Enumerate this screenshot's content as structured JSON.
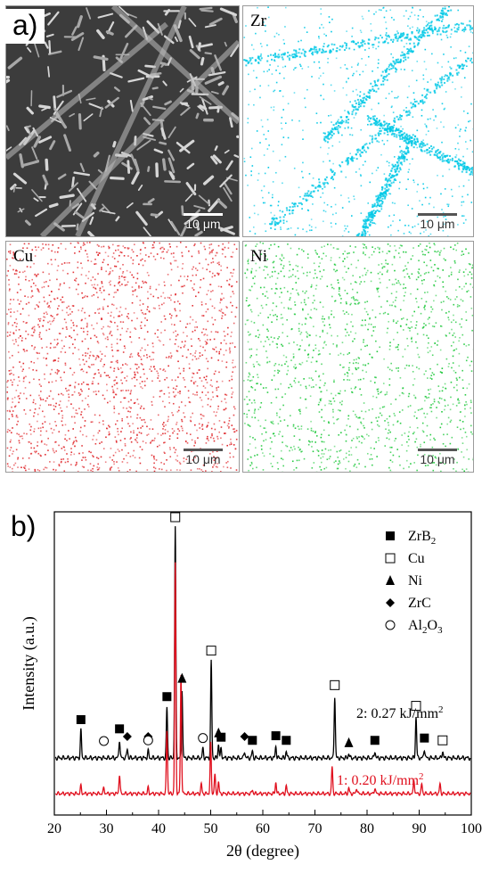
{
  "figure_a": {
    "label": "a)",
    "panels": [
      {
        "id": "sem",
        "element": "",
        "scale": "10 μm",
        "color": "#5a5a5a"
      },
      {
        "id": "zr",
        "element": "Zr",
        "scale": "10 μm",
        "color": "#00c8e6"
      },
      {
        "id": "cu",
        "element": "Cu",
        "scale": "10 μm",
        "color": "#e0282c"
      },
      {
        "id": "ni",
        "element": "Ni",
        "scale": "10 μm",
        "color": "#1fc83c"
      }
    ]
  },
  "figure_b": {
    "label": "b)",
    "chart_data": {
      "type": "line",
      "xlabel": "2θ (degree)",
      "ylabel": "Intensity (a.u.)",
      "xlim": [
        20,
        100
      ],
      "xticks": [
        20,
        30,
        40,
        50,
        60,
        70,
        80,
        90,
        100
      ],
      "xtick_labels": [
        "20",
        "30",
        "40",
        "50",
        "60",
        "70",
        "80",
        "90",
        "100"
      ],
      "series": [
        {
          "name": "2: 0.27 kJ/mm²",
          "color": "#000000",
          "peaks": [
            [
              25.1,
              0.12
            ],
            [
              32.5,
              0.08
            ],
            [
              34.0,
              0.04
            ],
            [
              38.0,
              0.03
            ],
            [
              41.6,
              0.22
            ],
            [
              43.2,
              1.0
            ],
            [
              44.5,
              0.3
            ],
            [
              48.5,
              0.04
            ],
            [
              50.1,
              0.42
            ],
            [
              51.5,
              0.06
            ],
            [
              52.0,
              0.04
            ],
            [
              56.5,
              0.03
            ],
            [
              58.0,
              0.03
            ],
            [
              62.5,
              0.05
            ],
            [
              64.5,
              0.03
            ],
            [
              73.8,
              0.27
            ],
            [
              76.5,
              0.02
            ],
            [
              81.5,
              0.03
            ],
            [
              89.4,
              0.18
            ],
            [
              91.0,
              0.04
            ],
            [
              94.5,
              0.03
            ]
          ]
        },
        {
          "name": "1: 0.20 kJ/mm²",
          "color": "#e0101e",
          "peaks": [
            [
              25.1,
              0.04
            ],
            [
              29.5,
              0.03
            ],
            [
              32.5,
              0.1
            ],
            [
              38.0,
              0.03
            ],
            [
              41.6,
              0.33
            ],
            [
              43.2,
              1.2
            ],
            [
              44.3,
              0.62
            ],
            [
              48.2,
              0.05
            ],
            [
              50.0,
              0.26
            ],
            [
              50.8,
              0.1
            ],
            [
              51.5,
              0.06
            ],
            [
              58.0,
              0.02
            ],
            [
              62.5,
              0.06
            ],
            [
              64.5,
              0.04
            ],
            [
              73.3,
              0.14
            ],
            [
              76.5,
              0.03
            ],
            [
              78.0,
              0.03
            ],
            [
              81.5,
              0.03
            ],
            [
              89.0,
              0.07
            ],
            [
              90.5,
              0.05
            ],
            [
              94.0,
              0.05
            ]
          ]
        }
      ],
      "series_labels": [
        {
          "text": "2: 0.27 kJ/mm",
          "sup": "2",
          "color": "#000000"
        },
        {
          "text": "1: 0.20 kJ/mm",
          "sup": "2",
          "color": "#e0101e"
        }
      ],
      "legend": {
        "placement": "top-right",
        "items": [
          {
            "marker": "filled-square",
            "text": "ZrB",
            "sub": "2"
          },
          {
            "marker": "open-square",
            "text": "Cu",
            "sub": ""
          },
          {
            "marker": "filled-triangle",
            "text": "Ni",
            "sub": ""
          },
          {
            "marker": "filled-diamond",
            "text": "ZrC",
            "sub": ""
          },
          {
            "marker": "open-circle",
            "text": "Al",
            "sub": "2",
            "text2": "O",
            "sub2": "3"
          }
        ]
      },
      "phase_markers": [
        {
          "x": 43.2,
          "marker": "open-square"
        },
        {
          "x": 50.1,
          "marker": "open-square"
        },
        {
          "x": 73.8,
          "marker": "open-square"
        },
        {
          "x": 89.4,
          "marker": "open-square"
        },
        {
          "x": 94.5,
          "marker": "open-square"
        },
        {
          "x": 25.1,
          "marker": "filled-square"
        },
        {
          "x": 32.5,
          "marker": "filled-square"
        },
        {
          "x": 41.6,
          "marker": "filled-square"
        },
        {
          "x": 52.0,
          "marker": "filled-square"
        },
        {
          "x": 58.0,
          "marker": "filled-square"
        },
        {
          "x": 62.5,
          "marker": "filled-square"
        },
        {
          "x": 64.5,
          "marker": "filled-square"
        },
        {
          "x": 81.5,
          "marker": "filled-square"
        },
        {
          "x": 91.0,
          "marker": "filled-square"
        },
        {
          "x": 44.5,
          "marker": "filled-triangle"
        },
        {
          "x": 51.5,
          "marker": "filled-triangle"
        },
        {
          "x": 76.5,
          "marker": "filled-triangle"
        },
        {
          "x": 34.0,
          "marker": "filled-diamond"
        },
        {
          "x": 38.0,
          "marker": "filled-diamond"
        },
        {
          "x": 56.5,
          "marker": "filled-diamond"
        },
        {
          "x": 29.5,
          "marker": "open-circle"
        },
        {
          "x": 38.0,
          "marker": "open-circle"
        },
        {
          "x": 48.5,
          "marker": "open-circle"
        }
      ]
    }
  }
}
